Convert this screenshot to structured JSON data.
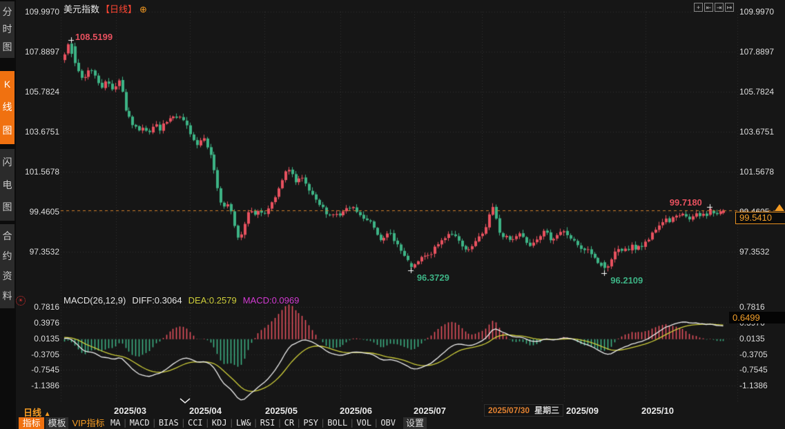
{
  "title": {
    "symbol": "美元指数",
    "period_tag": "【日线】",
    "add_button": "⊕"
  },
  "sidebar": {
    "items": [
      {
        "label": "分时图",
        "active": false
      },
      {
        "label": "K线图",
        "active": true
      },
      {
        "label": "闪电图",
        "active": false
      },
      {
        "label": "合约资料",
        "active": false
      }
    ]
  },
  "top_toolbar": {
    "icons": [
      {
        "name": "move-icon",
        "glyph": "+"
      },
      {
        "name": "pan-left-icon",
        "glyph": "⇤"
      },
      {
        "name": "pan-right-icon",
        "glyph": "⇥"
      },
      {
        "name": "shift-right-icon",
        "glyph": "↦"
      }
    ]
  },
  "price_axis": {
    "labels": [
      "109.9970",
      "107.8897",
      "105.7824",
      "103.6751",
      "101.5678",
      "99.4605",
      "97.3532"
    ]
  },
  "last_price_box": {
    "value": "99.5410"
  },
  "annotations": {
    "period_high": "108.5199",
    "july_low": "96.3729",
    "september_low": "96.2109",
    "october_high": "99.7180"
  },
  "macd_panel": {
    "header": {
      "name": "MACD(26,12,9)",
      "diff": "DIFF:0.3064",
      "dea": "DEA:0.2579",
      "macd": "MACD:0.0969"
    },
    "axis_labels": [
      "0.7816",
      "0.3976",
      "0.0135",
      "-0.3705",
      "-0.7545",
      "-1.1386"
    ],
    "highlight_value": "0.6499"
  },
  "x_axis": {
    "month_labels": [
      "2025/03",
      "2025/04",
      "2025/05",
      "2025/06",
      "2025/07",
      "2025/09",
      "2025/10"
    ],
    "highlighted_date": {
      "date": "2025/07/30",
      "weekday": "星期三"
    }
  },
  "bottom_bar": {
    "period": {
      "label": "日线",
      "arrow": "▲"
    },
    "tabs": [
      {
        "label": "指标",
        "style": "active"
      },
      {
        "label": "模板",
        "style": "button"
      },
      {
        "label": "VIP指标",
        "style": "vip"
      }
    ],
    "indicators": [
      "MA",
      "MACD",
      "BIAS",
      "CCI",
      "KDJ",
      "LW&",
      "RSI",
      "CR",
      "PSY",
      "BOLL",
      "VOL",
      "OBV"
    ],
    "settings": "设置"
  },
  "colors": {
    "up": "#e8515f",
    "down": "#3db385",
    "accent": "#f59b22",
    "period_tag": "#ff4633",
    "dea_line": "#cfcf3a",
    "dif_line": "#efefef",
    "macd_value": "#d23ad2",
    "grid": "#333333",
    "dashed_line": "#d2802a"
  },
  "chart_data": {
    "type": "candlestick",
    "title": "美元指数 日线",
    "price_levels": [
      109.997,
      107.8897,
      105.7824,
      103.6751,
      101.5678,
      99.4605,
      97.3532
    ],
    "macd_levels": [
      0.7816,
      0.3976,
      0.0135,
      -0.3705,
      -0.7545,
      -1.1386
    ],
    "key_points": {
      "period_high": 108.5199,
      "july_low": 96.3729,
      "september_low": 96.2109,
      "october_high": 99.718,
      "last_close": 99.541,
      "diff": 0.3064,
      "dea": 0.2579,
      "macd": 0.0969,
      "macd_axis_highlight": 0.6499
    },
    "close_anchors": [
      [
        93,
        107.6
      ],
      [
        97,
        107.95
      ],
      [
        101,
        108.28
      ],
      [
        105,
        107.8
      ],
      [
        109,
        107.0
      ],
      [
        113,
        106.85
      ],
      [
        117,
        106.55
      ],
      [
        121,
        106.45
      ],
      [
        125,
        106.75
      ],
      [
        129,
        107.1
      ],
      [
        133,
        106.85
      ],
      [
        137,
        106.6
      ],
      [
        141,
        106.35
      ],
      [
        145,
        106.15
      ],
      [
        149,
        106.0
      ],
      [
        153,
        106.35
      ],
      [
        157,
        106.2
      ],
      [
        161,
        105.95
      ],
      [
        165,
        106.05
      ],
      [
        169,
        106.15
      ],
      [
        173,
        106.55
      ],
      [
        177,
        105.7
      ],
      [
        181,
        104.9
      ],
      [
        185,
        104.45
      ],
      [
        190,
        104.15
      ],
      [
        195,
        103.9
      ],
      [
        200,
        103.75
      ],
      [
        205,
        104.0
      ],
      [
        210,
        103.85
      ],
      [
        215,
        103.65
      ],
      [
        220,
        103.9
      ],
      [
        225,
        104.05
      ],
      [
        230,
        103.8
      ],
      [
        235,
        104.0
      ],
      [
        240,
        104.15
      ],
      [
        245,
        104.35
      ],
      [
        250,
        104.45
      ],
      [
        255,
        104.3
      ],
      [
        260,
        104.45
      ],
      [
        265,
        104.2
      ],
      [
        270,
        103.95
      ],
      [
        275,
        103.65
      ],
      [
        280,
        103.3
      ],
      [
        285,
        103.0
      ],
      [
        290,
        103.25
      ],
      [
        295,
        103.45
      ],
      [
        300,
        102.9
      ],
      [
        305,
        102.35
      ],
      [
        310,
        101.6
      ],
      [
        315,
        100.6
      ],
      [
        320,
        99.85
      ],
      [
        325,
        99.6
      ],
      [
        330,
        99.85
      ],
      [
        335,
        99.35
      ],
      [
        340,
        98.6
      ],
      [
        345,
        98.0
      ],
      [
        350,
        98.45
      ],
      [
        355,
        99.05
      ],
      [
        360,
        99.45
      ],
      [
        365,
        99.55
      ],
      [
        370,
        99.3
      ],
      [
        375,
        99.55
      ],
      [
        380,
        99.4
      ],
      [
        385,
        99.5
      ],
      [
        390,
        99.65
      ],
      [
        395,
        100.0
      ],
      [
        400,
        100.35
      ],
      [
        405,
        100.8
      ],
      [
        410,
        101.3
      ],
      [
        415,
        101.65
      ],
      [
        419,
        101.8
      ],
      [
        424,
        101.3
      ],
      [
        429,
        100.85
      ],
      [
        434,
        101.25
      ],
      [
        439,
        101.1
      ],
      [
        444,
        100.75
      ],
      [
        449,
        100.45
      ],
      [
        454,
        100.15
      ],
      [
        459,
        99.9
      ],
      [
        464,
        99.75
      ],
      [
        469,
        99.55
      ],
      [
        474,
        99.35
      ],
      [
        479,
        99.25
      ],
      [
        484,
        99.45
      ],
      [
        489,
        99.15
      ],
      [
        494,
        99.35
      ],
      [
        499,
        99.5
      ],
      [
        504,
        99.6
      ],
      [
        509,
        99.7
      ],
      [
        514,
        99.55
      ],
      [
        519,
        99.35
      ],
      [
        524,
        99.1
      ],
      [
        529,
        98.95
      ],
      [
        534,
        99.1
      ],
      [
        539,
        98.8
      ],
      [
        544,
        98.45
      ],
      [
        549,
        98.15
      ],
      [
        554,
        97.9
      ],
      [
        559,
        98.2
      ],
      [
        564,
        98.35
      ],
      [
        569,
        98.1
      ],
      [
        574,
        97.8
      ],
      [
        579,
        97.45
      ],
      [
        584,
        97.15
      ],
      [
        589,
        96.85
      ],
      [
        594,
        96.6
      ],
      [
        598,
        96.5
      ],
      [
        603,
        96.75
      ],
      [
        608,
        96.95
      ],
      [
        613,
        97.15
      ],
      [
        618,
        97.05
      ],
      [
        623,
        97.25
      ],
      [
        628,
        97.45
      ],
      [
        633,
        97.7
      ],
      [
        638,
        97.9
      ],
      [
        643,
        98.1
      ],
      [
        648,
        98.3
      ],
      [
        653,
        98.35
      ],
      [
        658,
        98.15
      ],
      [
        663,
        97.9
      ],
      [
        668,
        97.6
      ],
      [
        673,
        97.45
      ],
      [
        678,
        97.35
      ],
      [
        683,
        97.6
      ],
      [
        688,
        97.85
      ],
      [
        693,
        98.05
      ],
      [
        698,
        98.3
      ],
      [
        703,
        98.7
      ],
      [
        708,
        99.3
      ],
      [
        712,
        99.75
      ],
      [
        716,
        99.3
      ],
      [
        720,
        98.7
      ],
      [
        724,
        98.3
      ],
      [
        728,
        98.1
      ],
      [
        733,
        98.2
      ],
      [
        738,
        97.95
      ],
      [
        743,
        98.1
      ],
      [
        748,
        98.25
      ],
      [
        753,
        98.35
      ],
      [
        758,
        98.1
      ],
      [
        763,
        97.85
      ],
      [
        768,
        97.75
      ],
      [
        773,
        97.95
      ],
      [
        778,
        98.15
      ],
      [
        783,
        98.3
      ],
      [
        788,
        98.4
      ],
      [
        793,
        98.2
      ],
      [
        798,
        98.0
      ],
      [
        803,
        98.15
      ],
      [
        808,
        98.3
      ],
      [
        813,
        98.45
      ],
      [
        818,
        98.35
      ],
      [
        823,
        98.2
      ],
      [
        828,
        98.0
      ],
      [
        833,
        97.8
      ],
      [
        838,
        97.55
      ],
      [
        843,
        97.35
      ],
      [
        848,
        97.5
      ],
      [
        853,
        97.35
      ],
      [
        858,
        97.15
      ],
      [
        863,
        96.9
      ],
      [
        868,
        96.7
      ],
      [
        873,
        96.5
      ],
      [
        877,
        96.4
      ],
      [
        881,
        96.75
      ],
      [
        885,
        97.0
      ],
      [
        889,
        97.25
      ],
      [
        894,
        97.45
      ],
      [
        899,
        97.3
      ],
      [
        904,
        97.55
      ],
      [
        909,
        97.45
      ],
      [
        914,
        97.65
      ],
      [
        919,
        97.5
      ],
      [
        924,
        97.7
      ],
      [
        929,
        97.6
      ],
      [
        934,
        97.8
      ],
      [
        939,
        98.0
      ],
      [
        944,
        98.25
      ],
      [
        949,
        98.5
      ],
      [
        954,
        98.75
      ],
      [
        959,
        98.95
      ],
      [
        964,
        99.1
      ],
      [
        969,
        98.95
      ],
      [
        974,
        99.1
      ],
      [
        979,
        99.25
      ],
      [
        984,
        99.15
      ],
      [
        989,
        99.3
      ],
      [
        994,
        99.2
      ],
      [
        999,
        99.05
      ],
      [
        1004,
        99.2
      ],
      [
        1009,
        99.3
      ],
      [
        1014,
        99.2
      ],
      [
        1019,
        99.35
      ],
      [
        1024,
        99.3
      ],
      [
        1029,
        99.55
      ],
      [
        1034,
        99.35
      ],
      [
        1039,
        99.3
      ],
      [
        1043,
        99.42
      ],
      [
        1047,
        99.54
      ]
    ]
  }
}
